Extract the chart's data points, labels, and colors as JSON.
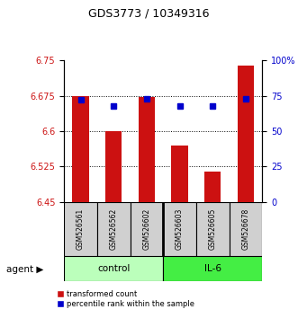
{
  "title": "GDS3773 / 10349316",
  "samples": [
    "GSM526561",
    "GSM526562",
    "GSM526602",
    "GSM526603",
    "GSM526605",
    "GSM526678"
  ],
  "red_values": [
    6.675,
    6.6,
    6.673,
    6.57,
    6.515,
    6.74
  ],
  "blue_values": [
    72,
    68,
    73,
    68,
    68,
    73
  ],
  "ylim_left": [
    6.45,
    6.75
  ],
  "ylim_right": [
    0,
    100
  ],
  "yticks_left": [
    6.45,
    6.525,
    6.6,
    6.675,
    6.75
  ],
  "yticks_right": [
    0,
    25,
    50,
    75,
    100
  ],
  "bar_color": "#cc1111",
  "dot_color": "#0000cc",
  "bar_width": 0.5,
  "bar_bottom": 6.45,
  "legend_red_label": "transformed count",
  "legend_blue_label": "percentile rank within the sample",
  "tick_label_color_left": "#cc1111",
  "tick_label_color_right": "#0000cc",
  "control_color": "#bbffbb",
  "il6_color": "#44ee44",
  "sample_bg_color": "#d0d0d0"
}
